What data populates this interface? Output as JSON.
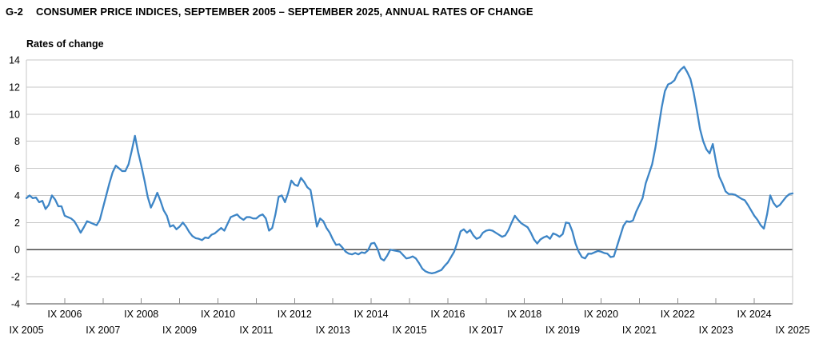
{
  "header": {
    "code": "G-2",
    "title": "CONSUMER PRICE INDICES, SEPTEMBER 2005 – SEPTEMBER 2025, ANNUAL RATES OF CHANGE"
  },
  "chart_data": {
    "type": "line",
    "title": "G-2 CONSUMER PRICE INDICES, SEPTEMBER 2005 – SEPTEMBER 2025, ANNUAL RATES OF CHANGE",
    "ylabel": "Rates of change",
    "xlabel": "",
    "ylim": [
      -4,
      14
    ],
    "grid": "horizontal",
    "legend": "none",
    "y_ticks": [
      14,
      12,
      10,
      8,
      6,
      4,
      2,
      0,
      -2,
      -4
    ],
    "x_tick_labels": [
      "IX 2005",
      "IX 2006",
      "IX 2007",
      "IX 2008",
      "IX 2009",
      "IX 2010",
      "IX 2011",
      "IX 2012",
      "IX 2013",
      "IX 2014",
      "IX 2015",
      "IX 2016",
      "IX 2017",
      "IX 2018",
      "IX 2019",
      "IX 2020",
      "IX 2021",
      "IX 2022",
      "IX 2023",
      "IX 2024",
      "IX 2025"
    ],
    "frequency": "monthly",
    "start": "2005-09",
    "end": "2025-09",
    "colors": {
      "line": "#3d85c6",
      "grid": "#c7c7c7",
      "zero_line": "#4a4a4a",
      "axis": "#4a4a4a",
      "tick": "#8c8c8c",
      "text": "#000000"
    },
    "series": [
      {
        "name": "Consumer price indices, annual rate of change (%)",
        "values": [
          3.8,
          4.0,
          3.8,
          3.85,
          3.5,
          3.6,
          3.0,
          3.3,
          4.0,
          3.7,
          3.2,
          3.2,
          2.5,
          2.4,
          2.3,
          2.1,
          1.7,
          1.25,
          1.65,
          2.1,
          2.0,
          1.9,
          1.8,
          2.2,
          3.1,
          4.0,
          4.9,
          5.7,
          6.2,
          6.0,
          5.8,
          5.8,
          6.3,
          7.3,
          8.4,
          7.2,
          6.2,
          5.1,
          3.9,
          3.1,
          3.6,
          4.2,
          3.6,
          2.9,
          2.5,
          1.7,
          1.8,
          1.5,
          1.7,
          2.0,
          1.7,
          1.3,
          1.0,
          0.85,
          0.8,
          0.7,
          0.9,
          0.85,
          1.1,
          1.2,
          1.4,
          1.6,
          1.4,
          1.9,
          2.4,
          2.5,
          2.6,
          2.35,
          2.2,
          2.4,
          2.4,
          2.3,
          2.3,
          2.5,
          2.6,
          2.3,
          1.4,
          1.6,
          2.6,
          3.9,
          4.0,
          3.5,
          4.2,
          5.1,
          4.8,
          4.7,
          5.3,
          5.0,
          4.6,
          4.4,
          3.1,
          1.7,
          2.3,
          2.1,
          1.6,
          1.25,
          0.75,
          0.35,
          0.4,
          0.15,
          -0.15,
          -0.3,
          -0.35,
          -0.25,
          -0.35,
          -0.2,
          -0.25,
          -0.05,
          0.45,
          0.5,
          0.05,
          -0.65,
          -0.8,
          -0.45,
          0.0,
          -0.05,
          -0.1,
          -0.15,
          -0.4,
          -0.65,
          -0.6,
          -0.5,
          -0.65,
          -1.0,
          -1.4,
          -1.6,
          -1.7,
          -1.75,
          -1.7,
          -1.6,
          -1.5,
          -1.2,
          -0.95,
          -0.55,
          -0.15,
          0.55,
          1.35,
          1.5,
          1.25,
          1.45,
          1.05,
          0.8,
          0.9,
          1.25,
          1.4,
          1.45,
          1.4,
          1.25,
          1.1,
          0.95,
          1.05,
          1.45,
          2.0,
          2.5,
          2.2,
          1.95,
          1.8,
          1.65,
          1.25,
          0.75,
          0.45,
          0.75,
          0.9,
          1.0,
          0.8,
          1.2,
          1.1,
          0.95,
          1.15,
          2.0,
          1.95,
          1.35,
          0.45,
          -0.15,
          -0.55,
          -0.65,
          -0.3,
          -0.3,
          -0.2,
          -0.1,
          -0.15,
          -0.25,
          -0.3,
          -0.55,
          -0.5,
          0.25,
          1.0,
          1.75,
          2.1,
          2.05,
          2.15,
          2.8,
          3.3,
          3.8,
          4.9,
          5.6,
          6.3,
          7.5,
          9.0,
          10.5,
          11.7,
          12.2,
          12.3,
          12.5,
          13.0,
          13.3,
          13.5,
          13.1,
          12.6,
          11.6,
          10.3,
          8.9,
          8.0,
          7.4,
          7.1,
          7.8,
          6.5,
          5.4,
          4.9,
          4.3,
          4.1,
          4.1,
          4.05,
          3.9,
          3.75,
          3.65,
          3.3,
          2.9,
          2.5,
          2.2,
          1.8,
          1.55,
          2.6,
          4.0,
          3.45,
          3.15,
          3.3,
          3.6,
          3.9,
          4.1,
          4.15
        ]
      }
    ]
  }
}
